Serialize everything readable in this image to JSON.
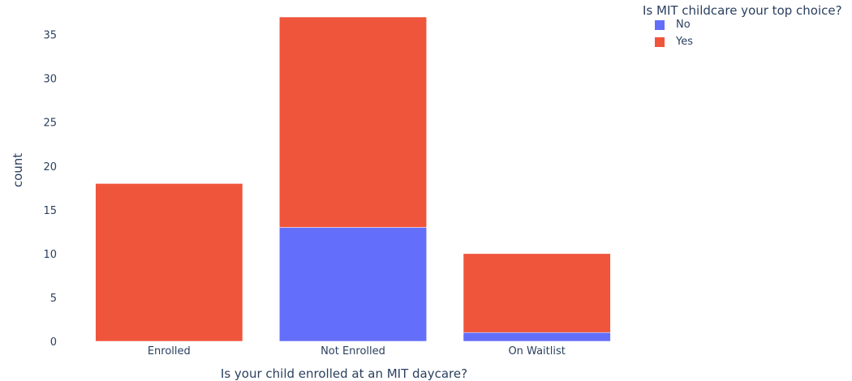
{
  "chart_data": {
    "type": "bar",
    "barmode": "stack",
    "categories": [
      "Enrolled",
      "Not Enrolled",
      "On Waitlist"
    ],
    "series": [
      {
        "name": "No",
        "values": [
          0,
          13,
          1
        ],
        "color": "#636efa"
      },
      {
        "name": "Yes",
        "values": [
          18,
          24,
          9
        ],
        "color": "#ef553b"
      }
    ],
    "xlabel": "Is your child enrolled at an MIT daycare?",
    "ylabel": "count",
    "ylim": [
      0,
      37
    ],
    "yticks": [
      0,
      5,
      10,
      15,
      20,
      25,
      30,
      35
    ],
    "grid": false,
    "legend": {
      "title": "Is MIT childcare your top choice?",
      "position": "top-right"
    }
  }
}
